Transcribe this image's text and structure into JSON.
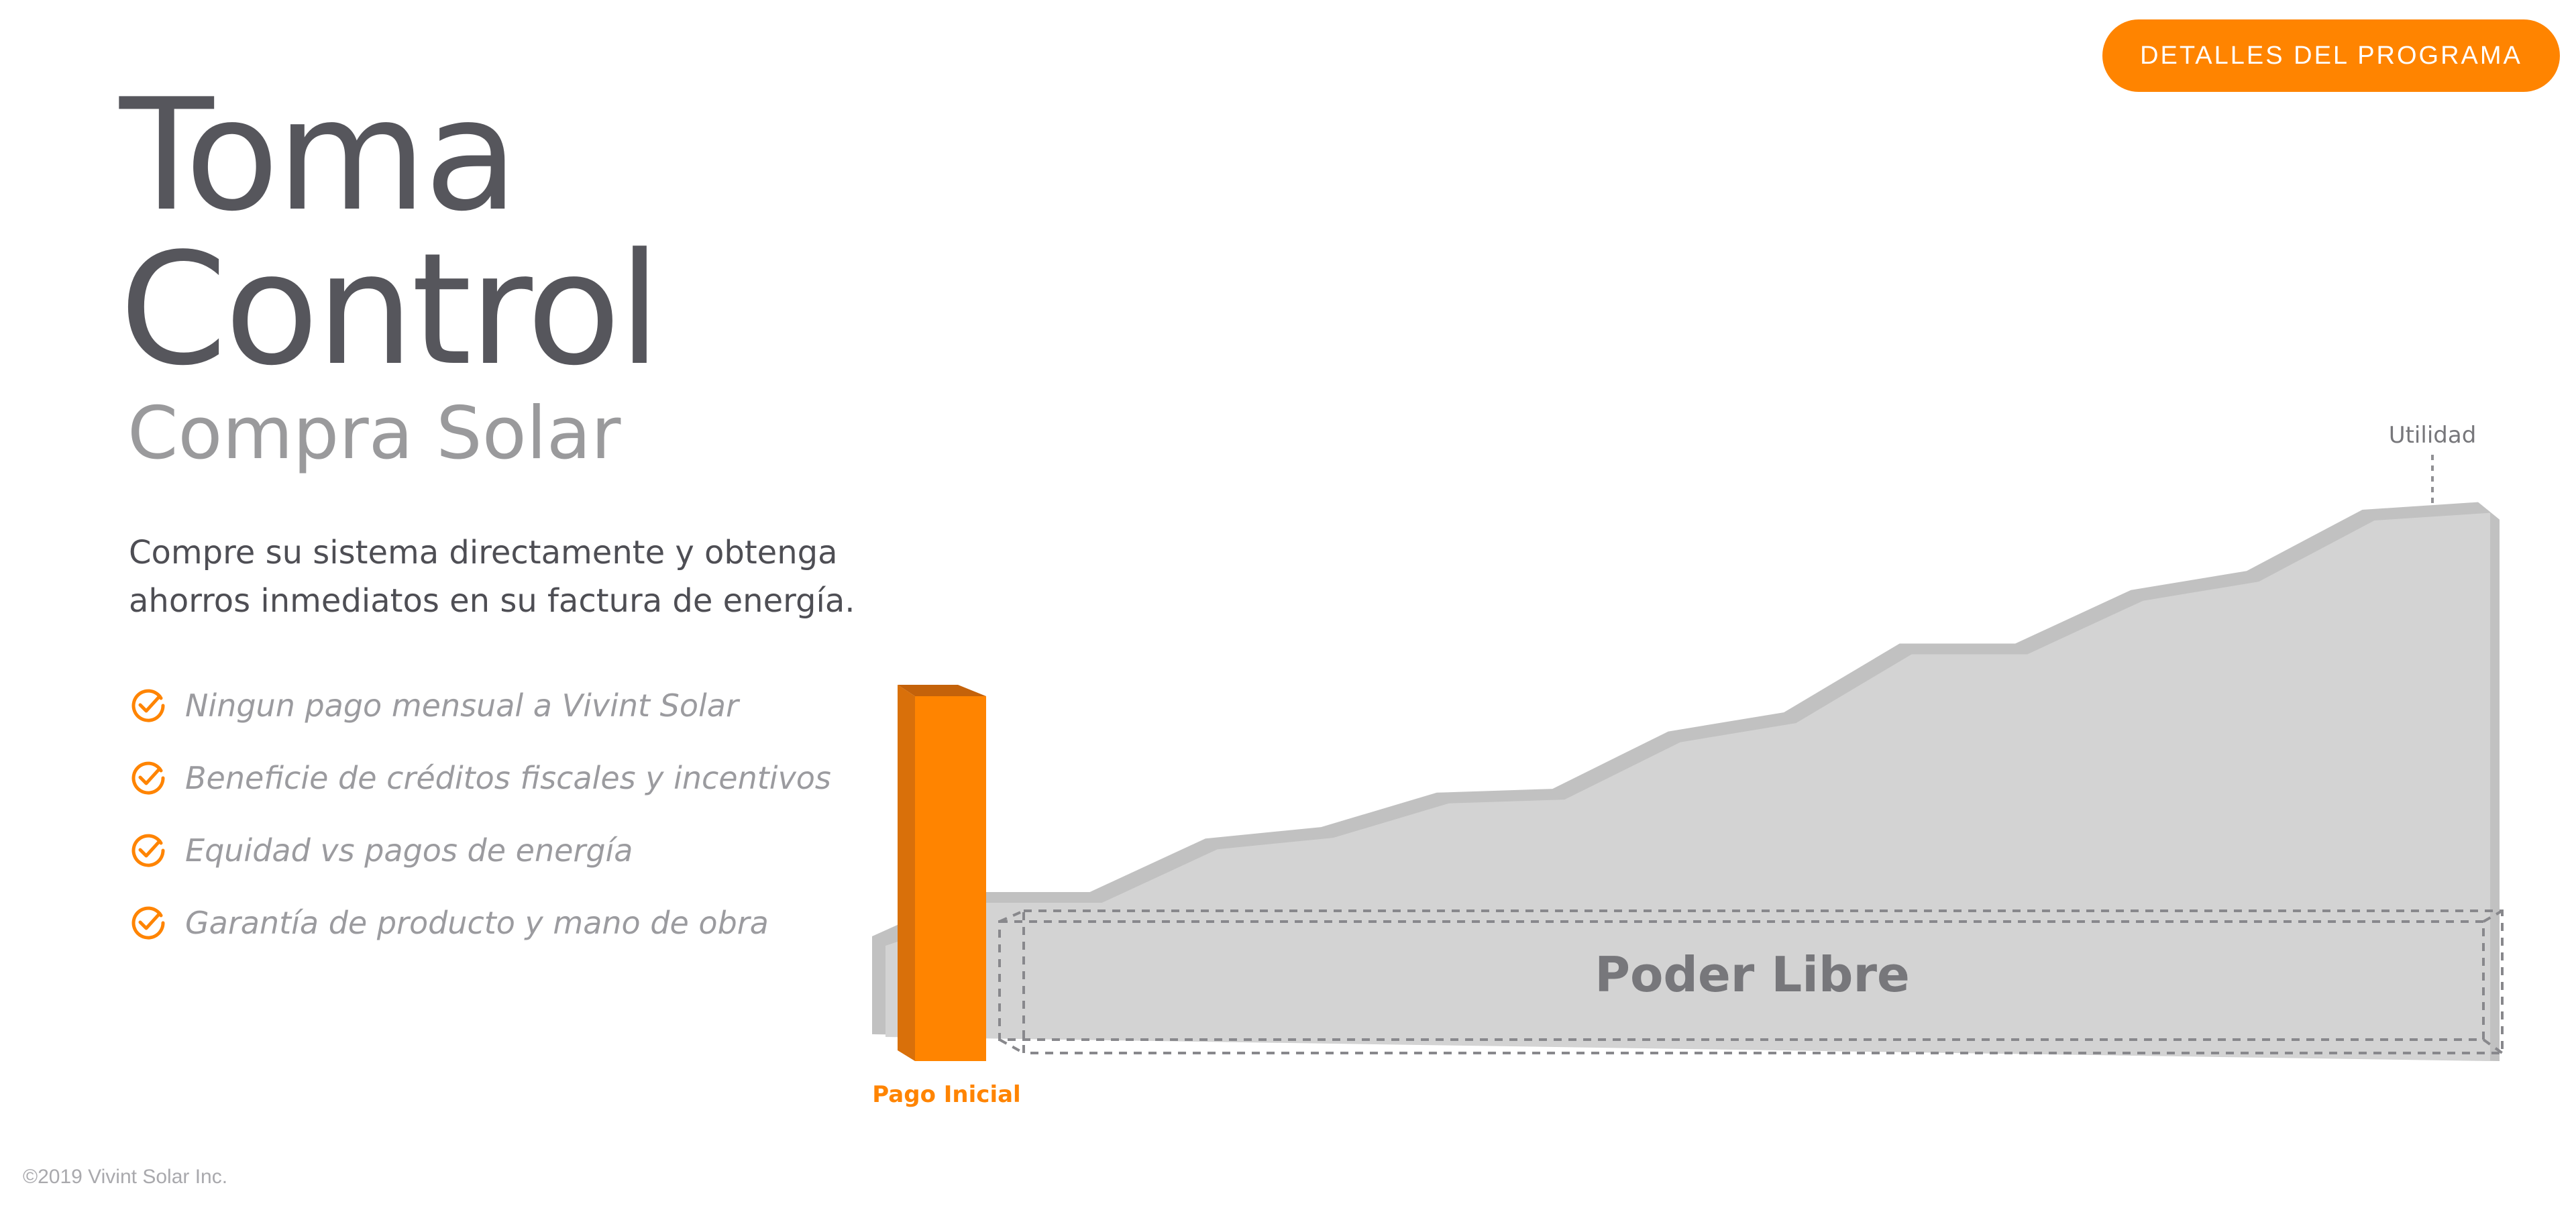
{
  "header": {
    "cta_label": "DETALLES DEL PROGRAMA"
  },
  "hero": {
    "title_line1": "Toma",
    "title_line2": "Control",
    "subtitle": "Compra Solar",
    "description": "Compre su sistema directamente y obtenga ahorros inmediatos en su factura de energía."
  },
  "benefits": [
    {
      "icon": "check-circle-icon",
      "label": "Ningun pago mensual a Vivint Solar"
    },
    {
      "icon": "check-circle-icon",
      "label": "Beneficie de créditos fiscales y incentivos"
    },
    {
      "icon": "check-circle-icon",
      "label": "Equidad vs pagos de energía"
    },
    {
      "icon": "check-circle-icon",
      "label": "Garantía de producto y mano de obra"
    }
  ],
  "chart_data": {
    "type": "area",
    "labels": {
      "initial_payment": "Pago Inicial",
      "free_power": "Poder Libre",
      "utility": "Utilidad"
    },
    "utility_trend": [
      0.0,
      0.0,
      0.14,
      0.17,
      0.26,
      0.27,
      0.42,
      0.47,
      0.65,
      0.65,
      0.79,
      0.84,
      1.0,
      1.02
    ],
    "colors": {
      "accent": "#ff8400",
      "accent_dark": "#d9700a",
      "area": "#d3d3d3",
      "area_edge": "#c1c1c1",
      "muted_text": "#77777b"
    }
  },
  "footer": {
    "copyright": "©2019 Vivint Solar Inc."
  }
}
